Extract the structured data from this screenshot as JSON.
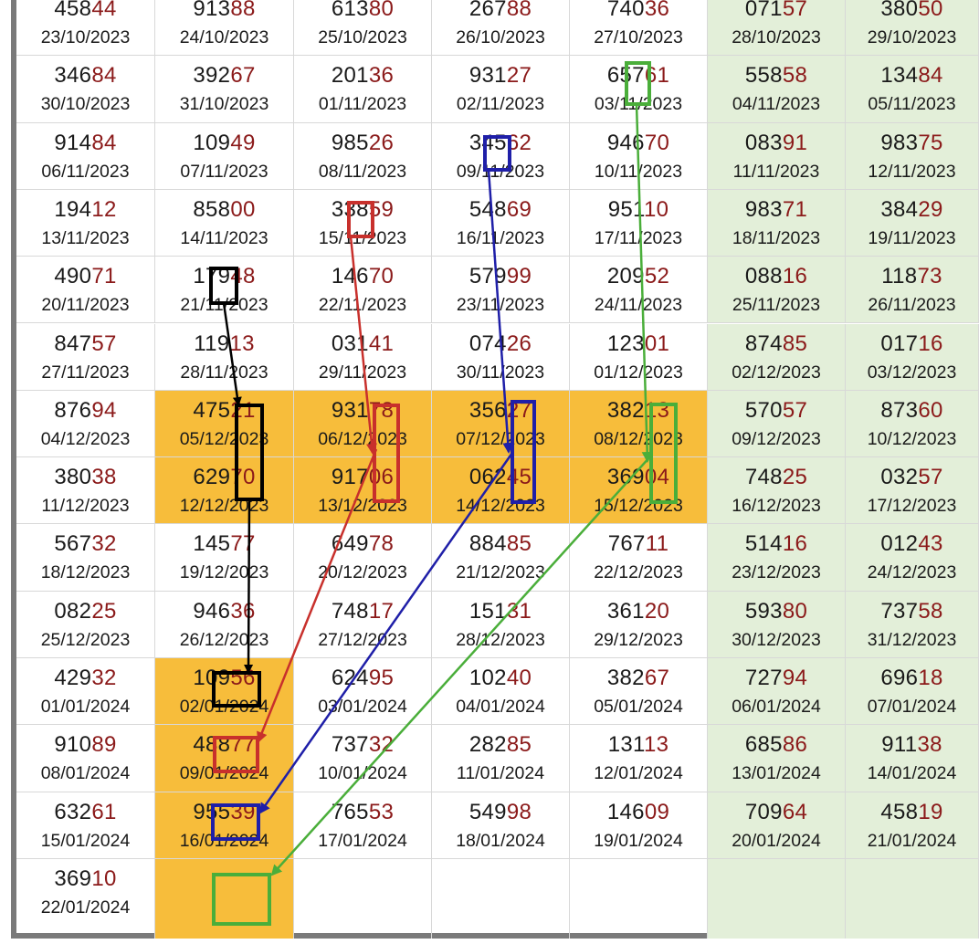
{
  "columns": 7,
  "rows": [
    [
      {
        "n": "45844",
        "d": "23/10/2023"
      },
      {
        "n": "91388",
        "d": "24/10/2023"
      },
      {
        "n": "61380",
        "d": "25/10/2023"
      },
      {
        "n": "26788",
        "d": "26/10/2023"
      },
      {
        "n": "74036",
        "d": "27/10/2023"
      },
      {
        "n": "07157",
        "d": "28/10/2023"
      },
      {
        "n": "38050",
        "d": "29/10/2023"
      }
    ],
    [
      {
        "n": "34684",
        "d": "30/10/2023"
      },
      {
        "n": "39267",
        "d": "31/10/2023"
      },
      {
        "n": "20136",
        "d": "01/11/2023"
      },
      {
        "n": "93127",
        "d": "02/11/2023"
      },
      {
        "n": "65761",
        "d": "03/11/2023"
      },
      {
        "n": "55858",
        "d": "04/11/2023"
      },
      {
        "n": "13484",
        "d": "05/11/2023"
      }
    ],
    [
      {
        "n": "91484",
        "d": "06/11/2023"
      },
      {
        "n": "10949",
        "d": "07/11/2023"
      },
      {
        "n": "98526",
        "d": "08/11/2023"
      },
      {
        "n": "34562",
        "d": "09/11/2023"
      },
      {
        "n": "94670",
        "d": "10/11/2023"
      },
      {
        "n": "08391",
        "d": "11/11/2023"
      },
      {
        "n": "98375",
        "d": "12/11/2023"
      }
    ],
    [
      {
        "n": "19412",
        "d": "13/11/2023"
      },
      {
        "n": "85800",
        "d": "14/11/2023"
      },
      {
        "n": "33859",
        "d": "15/11/2023"
      },
      {
        "n": "54869",
        "d": "16/11/2023"
      },
      {
        "n": "95110",
        "d": "17/11/2023"
      },
      {
        "n": "98371",
        "d": "18/11/2023"
      },
      {
        "n": "38429",
        "d": "19/11/2023"
      }
    ],
    [
      {
        "n": "49071",
        "d": "20/11/2023"
      },
      {
        "n": "17948",
        "d": "21/11/2023"
      },
      {
        "n": "14670",
        "d": "22/11/2023"
      },
      {
        "n": "57999",
        "d": "23/11/2023"
      },
      {
        "n": "20952",
        "d": "24/11/2023"
      },
      {
        "n": "08816",
        "d": "25/11/2023"
      },
      {
        "n": "11873",
        "d": "26/11/2023"
      }
    ],
    [
      {
        "n": "84757",
        "d": "27/11/2023"
      },
      {
        "n": "11913",
        "d": "28/11/2023"
      },
      {
        "n": "03141",
        "d": "29/11/2023"
      },
      {
        "n": "07426",
        "d": "30/11/2023"
      },
      {
        "n": "12301",
        "d": "01/12/2023"
      },
      {
        "n": "87485",
        "d": "02/12/2023"
      },
      {
        "n": "01716",
        "d": "03/12/2023"
      }
    ],
    [
      {
        "n": "87694",
        "d": "04/12/2023"
      },
      {
        "n": "47521",
        "d": "05/12/2023"
      },
      {
        "n": "93178",
        "d": "06/12/2023"
      },
      {
        "n": "35627",
        "d": "07/12/2023"
      },
      {
        "n": "38213",
        "d": "08/12/2023"
      },
      {
        "n": "57057",
        "d": "09/12/2023"
      },
      {
        "n": "87360",
        "d": "10/12/2023"
      }
    ],
    [
      {
        "n": "38038",
        "d": "11/12/2023"
      },
      {
        "n": "62970",
        "d": "12/12/2023"
      },
      {
        "n": "91706",
        "d": "13/12/2023"
      },
      {
        "n": "06245",
        "d": "14/12/2023"
      },
      {
        "n": "36904",
        "d": "15/12/2023"
      },
      {
        "n": "74825",
        "d": "16/12/2023"
      },
      {
        "n": "03257",
        "d": "17/12/2023"
      }
    ],
    [
      {
        "n": "56732",
        "d": "18/12/2023"
      },
      {
        "n": "14577",
        "d": "19/12/2023"
      },
      {
        "n": "64978",
        "d": "20/12/2023"
      },
      {
        "n": "88485",
        "d": "21/12/2023"
      },
      {
        "n": "76711",
        "d": "22/12/2023"
      },
      {
        "n": "51416",
        "d": "23/12/2023"
      },
      {
        "n": "01243",
        "d": "24/12/2023"
      }
    ],
    [
      {
        "n": "08225",
        "d": "25/12/2023"
      },
      {
        "n": "94636",
        "d": "26/12/2023"
      },
      {
        "n": "74817",
        "d": "27/12/2023"
      },
      {
        "n": "15131",
        "d": "28/12/2023"
      },
      {
        "n": "36120",
        "d": "29/12/2023"
      },
      {
        "n": "59380",
        "d": "30/12/2023"
      },
      {
        "n": "73758",
        "d": "31/12/2023"
      }
    ],
    [
      {
        "n": "42932",
        "d": "01/01/2024"
      },
      {
        "n": "10956",
        "d": "02/01/2024"
      },
      {
        "n": "62495",
        "d": "03/01/2024"
      },
      {
        "n": "10240",
        "d": "04/01/2024"
      },
      {
        "n": "38267",
        "d": "05/01/2024"
      },
      {
        "n": "72794",
        "d": "06/01/2024"
      },
      {
        "n": "69618",
        "d": "07/01/2024"
      }
    ],
    [
      {
        "n": "91089",
        "d": "08/01/2024"
      },
      {
        "n": "48877",
        "d": "09/01/2024"
      },
      {
        "n": "73732",
        "d": "10/01/2024"
      },
      {
        "n": "28285",
        "d": "11/01/2024"
      },
      {
        "n": "13113",
        "d": "12/01/2024"
      },
      {
        "n": "68586",
        "d": "13/01/2024"
      },
      {
        "n": "91138",
        "d": "14/01/2024"
      }
    ],
    [
      {
        "n": "63261",
        "d": "15/01/2024"
      },
      {
        "n": "95539",
        "d": "16/01/2024"
      },
      {
        "n": "76553",
        "d": "17/01/2024"
      },
      {
        "n": "54998",
        "d": "18/01/2024"
      },
      {
        "n": "14609",
        "d": "19/01/2024"
      },
      {
        "n": "70964",
        "d": "20/01/2024"
      },
      {
        "n": "45819",
        "d": "21/01/2024"
      }
    ],
    [
      {
        "n": "36910",
        "d": "22/01/2024"
      },
      {
        "n": "",
        "d": ""
      },
      {
        "n": "",
        "d": ""
      },
      {
        "n": "",
        "d": ""
      },
      {
        "n": "",
        "d": ""
      },
      {
        "n": "",
        "d": ""
      },
      {
        "n": "",
        "d": ""
      }
    ]
  ],
  "highlighted_cells": [
    [
      6,
      1
    ],
    [
      6,
      2
    ],
    [
      6,
      3
    ],
    [
      6,
      4
    ],
    [
      7,
      1
    ],
    [
      7,
      2
    ],
    [
      7,
      3
    ],
    [
      7,
      4
    ],
    [
      10,
      1
    ],
    [
      11,
      1
    ],
    [
      12,
      1
    ],
    [
      13,
      1
    ]
  ],
  "weekend_columns": [
    5,
    6
  ],
  "colors": {
    "highlight": "#f7bd3b",
    "weekend": "#e3efd9",
    "digit_tail": "#8b1a1a",
    "black_trace": "#000000",
    "red_trace": "#c8302c",
    "blue_trace": "#1f1fa8",
    "green_trace": "#4aae3a"
  }
}
